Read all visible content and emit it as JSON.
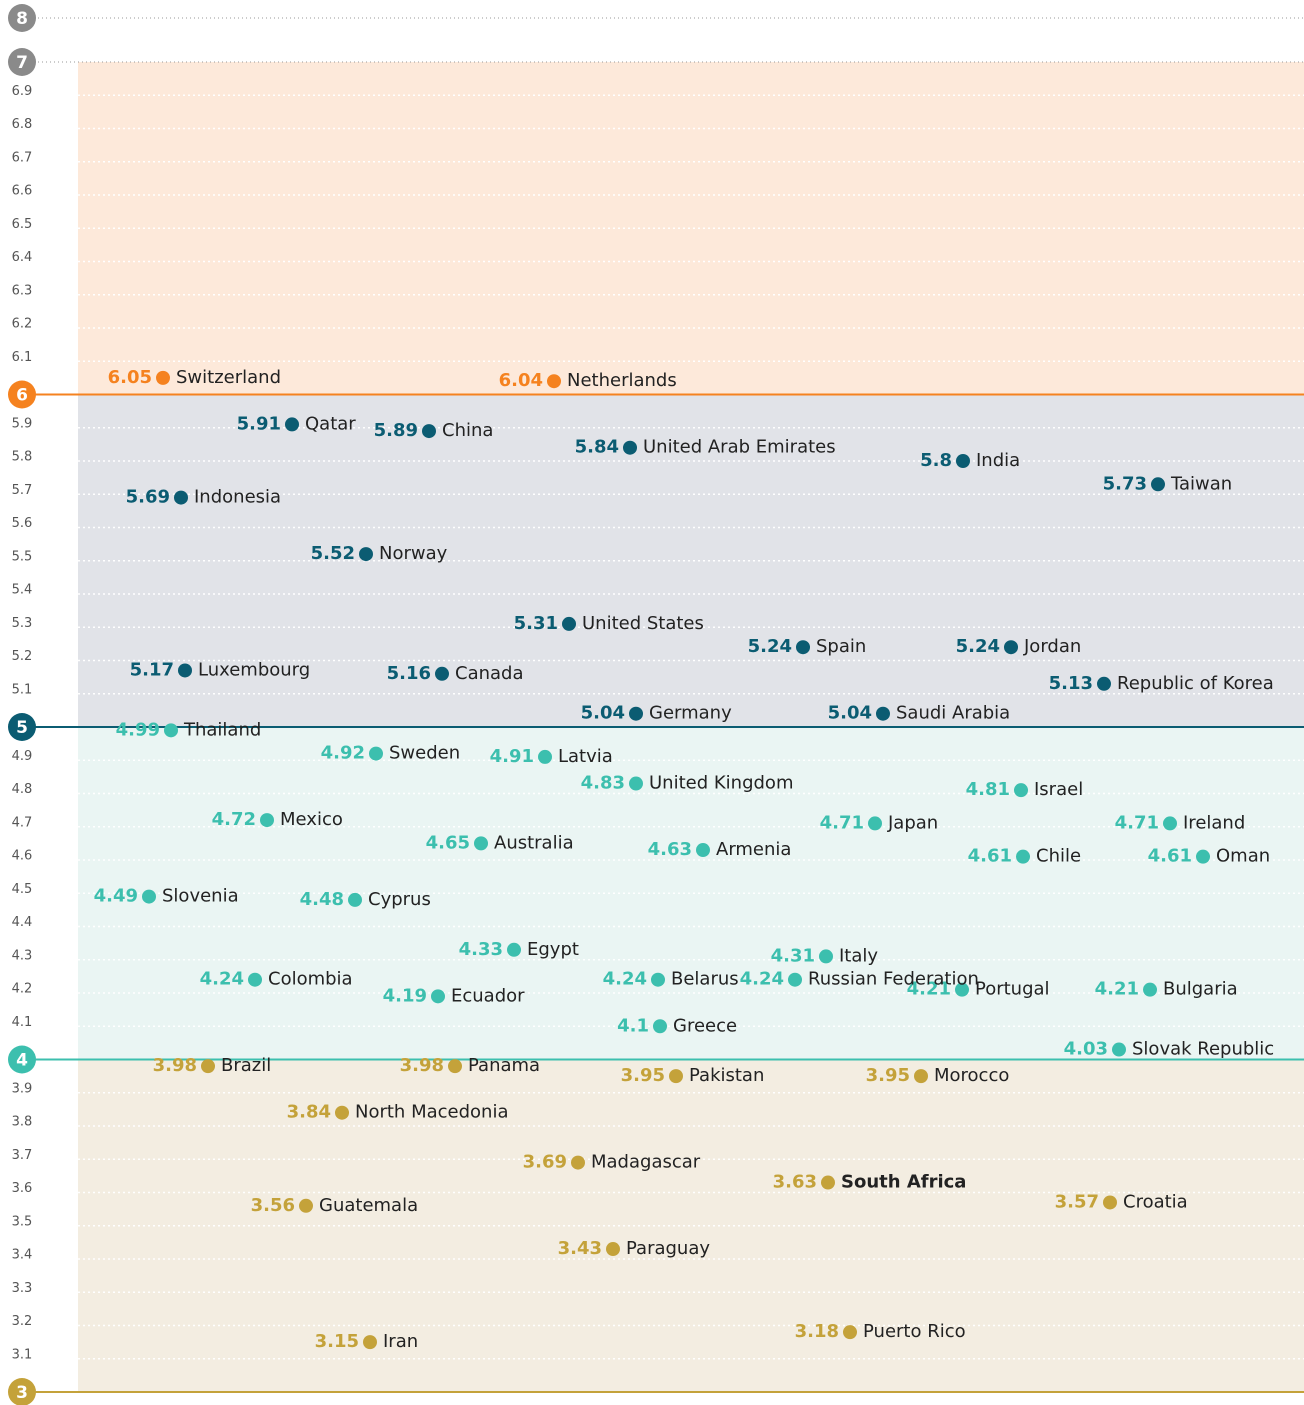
{
  "chart_data": {
    "type": "scatter",
    "ylim": [
      3,
      8
    ],
    "yticks": [
      3,
      3.1,
      3.2,
      3.3,
      3.4,
      3.5,
      3.6,
      3.7,
      3.8,
      3.9,
      4,
      4.1,
      4.2,
      4.3,
      4.4,
      4.5,
      4.6,
      4.7,
      4.8,
      4.9,
      5,
      5.1,
      5.2,
      5.3,
      5.4,
      5.5,
      5.6,
      5.7,
      5.8,
      5.9,
      6,
      6.1,
      6.2,
      6.3,
      6.4,
      6.5,
      6.6,
      6.7,
      6.8,
      6.9,
      7,
      8
    ],
    "grid": true,
    "band_colors": [
      {
        "fill": "#f3ede1",
        "dot": "#c4a23a"
      },
      {
        "fill": "#eaf5f3",
        "dot": "#3cbfae"
      },
      {
        "fill": "#e1e3e8",
        "dot": "#0b5c72"
      },
      {
        "fill": "#fde9da",
        "dot": "#f5821f"
      },
      {
        "fill": "#ffffff",
        "dot": "#8a8a8a"
      }
    ],
    "points": [
      {
        "label": "Switzerland",
        "value": 6.05
      },
      {
        "label": "Netherlands",
        "value": 6.04
      },
      {
        "label": "Qatar",
        "value": 5.91
      },
      {
        "label": "China",
        "value": 5.89
      },
      {
        "label": "United Arab Emirates",
        "value": 5.84
      },
      {
        "label": "India",
        "value": 5.8
      },
      {
        "label": "Taiwan",
        "value": 5.73
      },
      {
        "label": "Indonesia",
        "value": 5.69
      },
      {
        "label": "Norway",
        "value": 5.52
      },
      {
        "label": "United States",
        "value": 5.31
      },
      {
        "label": "Spain",
        "value": 5.24
      },
      {
        "label": "Jordan",
        "value": 5.24
      },
      {
        "label": "Luxembourg",
        "value": 5.17
      },
      {
        "label": "Canada",
        "value": 5.16
      },
      {
        "label": "Republic of Korea",
        "value": 5.13
      },
      {
        "label": "Germany",
        "value": 5.04
      },
      {
        "label": "Saudi Arabia",
        "value": 5.04
      },
      {
        "label": "Thailand",
        "value": 4.99
      },
      {
        "label": "Sweden",
        "value": 4.92
      },
      {
        "label": "Latvia",
        "value": 4.91
      },
      {
        "label": "United Kingdom",
        "value": 4.83
      },
      {
        "label": "Israel",
        "value": 4.81
      },
      {
        "label": "Mexico",
        "value": 4.72
      },
      {
        "label": "Japan",
        "value": 4.71
      },
      {
        "label": "Ireland",
        "value": 4.71
      },
      {
        "label": "Australia",
        "value": 4.65
      },
      {
        "label": "Armenia",
        "value": 4.63
      },
      {
        "label": "Chile",
        "value": 4.61
      },
      {
        "label": "Oman",
        "value": 4.61
      },
      {
        "label": "Slovenia",
        "value": 4.49
      },
      {
        "label": "Cyprus",
        "value": 4.48
      },
      {
        "label": "Egypt",
        "value": 4.33
      },
      {
        "label": "Italy",
        "value": 4.31
      },
      {
        "label": "Colombia",
        "value": 4.24
      },
      {
        "label": "Belarus",
        "value": 4.24
      },
      {
        "label": "Portugal",
        "value": 4.21
      },
      {
        "label": "Bulgaria",
        "value": 4.21
      },
      {
        "label": "Ecuador",
        "value": 4.19
      },
      {
        "label": "Greece",
        "value": 4.1
      },
      {
        "label": "Russian Federation",
        "value": 4.24
      },
      {
        "label": "Slovak Republic",
        "value": 4.03
      },
      {
        "label": "Brazil",
        "value": 3.98
      },
      {
        "label": "Panama",
        "value": 3.98
      },
      {
        "label": "Pakistan",
        "value": 3.95
      },
      {
        "label": "Morocco",
        "value": 3.95
      },
      {
        "label": "North Macedonia",
        "value": 3.84
      },
      {
        "label": "Madagascar",
        "value": 3.69
      },
      {
        "label": "South Africa",
        "value": 3.63,
        "bold": true
      },
      {
        "label": "Guatemala",
        "value": 3.56
      },
      {
        "label": "Croatia",
        "value": 3.57
      },
      {
        "label": "Paraguay",
        "value": 3.43
      },
      {
        "label": "Iran",
        "value": 3.15
      },
      {
        "label": "Puerto Rico",
        "value": 3.18
      }
    ]
  }
}
